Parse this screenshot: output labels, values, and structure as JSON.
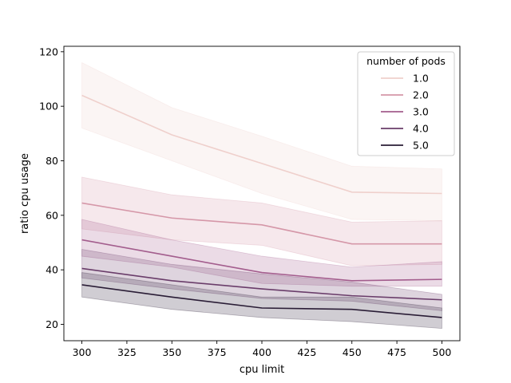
{
  "chart_data": {
    "type": "line",
    "xlabel": "cpu limit",
    "ylabel": "ratio cpu usage",
    "xlim": [
      290,
      510
    ],
    "ylim": [
      14,
      122
    ],
    "xticks": [
      300,
      325,
      350,
      375,
      400,
      425,
      450,
      475,
      500
    ],
    "yticks": [
      20,
      40,
      60,
      80,
      100,
      120
    ],
    "grid": false,
    "legend": {
      "title": "number of pods",
      "placement": "top-right"
    },
    "x": [
      300,
      350,
      400,
      450,
      500
    ],
    "series": [
      {
        "name": "1.0",
        "color": "#efd0cc",
        "values": [
          104,
          89.5,
          79,
          68.5,
          68
        ],
        "lower": [
          92,
          80,
          68,
          58.5,
          58
        ],
        "upper": [
          116,
          99.5,
          89,
          78,
          77
        ]
      },
      {
        "name": "2.0",
        "color": "#d597a8",
        "values": [
          64.5,
          59,
          56.5,
          49.5,
          49.5
        ],
        "lower": [
          55,
          51,
          49,
          41.5,
          42
        ],
        "upper": [
          74,
          67.5,
          64.5,
          57.5,
          58
        ]
      },
      {
        "name": "3.0",
        "color": "#a35d8d",
        "values": [
          51,
          45,
          39,
          36,
          36.5
        ],
        "lower": [
          45,
          41,
          35,
          34,
          34
        ],
        "upper": [
          58.5,
          51,
          45,
          41,
          43
        ]
      },
      {
        "name": "4.0",
        "color": "#6a3d6a",
        "values": [
          40.5,
          36,
          33,
          30.5,
          29
        ],
        "lower": [
          37,
          33,
          29.5,
          28.5,
          25
        ],
        "upper": [
          47.5,
          42,
          38.5,
          35.5,
          31
        ]
      },
      {
        "name": "5.0",
        "color": "#2a1d36",
        "values": [
          34.5,
          30,
          26,
          25.5,
          22.5
        ],
        "lower": [
          30,
          25.5,
          22.5,
          21,
          18.5
        ],
        "upper": [
          39,
          34.5,
          30,
          30,
          26
        ]
      }
    ]
  }
}
